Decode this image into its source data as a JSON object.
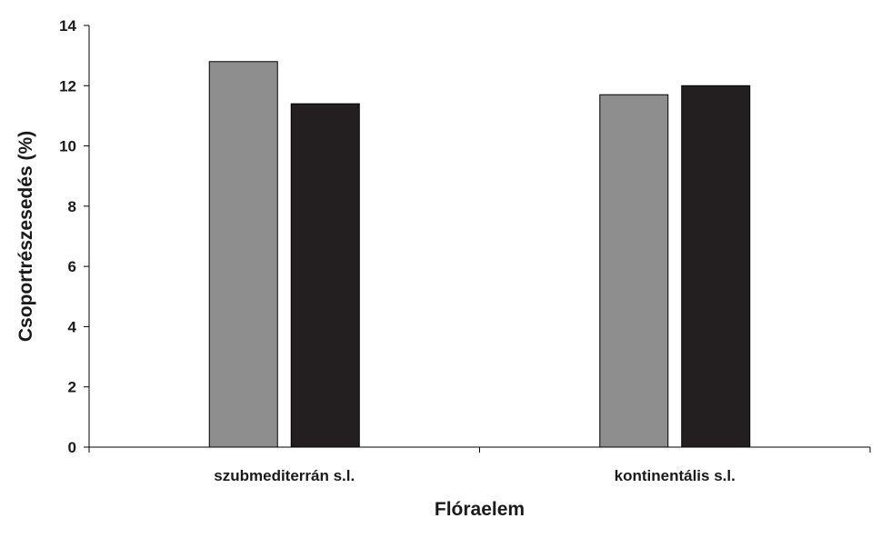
{
  "chart_data": {
    "type": "bar",
    "categories": [
      "szubmediterrán s.l.",
      "kontinentális s.l."
    ],
    "series": [
      {
        "values": [
          12.8,
          11.7
        ],
        "color": "#8f8e8e"
      },
      {
        "values": [
          11.4,
          12.0
        ],
        "color": "#231f20"
      }
    ],
    "xlabel": "Flóraelem",
    "ylabel": "Csoportrészesedés (%)",
    "ylim": [
      0,
      14
    ],
    "yticks": [
      0,
      2,
      4,
      6,
      8,
      10,
      12,
      14
    ],
    "grid": false,
    "legend": "none"
  }
}
